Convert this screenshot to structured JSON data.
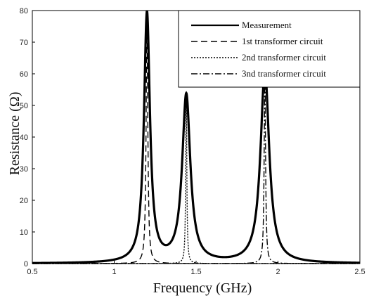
{
  "chart_data": {
    "type": "line",
    "title": "",
    "xlabel": "Frequency (GHz)",
    "ylabel": "Resistance (Ω)",
    "xlim": [
      0.5,
      2.5
    ],
    "ylim": [
      0,
      80
    ],
    "xticks": [
      "0.5",
      "1",
      "1.5",
      "2",
      "2.5"
    ],
    "yticks": [
      "0",
      "10",
      "20",
      "30",
      "40",
      "50",
      "60",
      "70",
      "80"
    ],
    "grid": false,
    "legend_position": "top-right",
    "series": [
      {
        "name": "Measurement",
        "style": "solid",
        "color": "#000000",
        "peaks": [
          {
            "x": 1.2,
            "y": 79
          },
          {
            "x": 1.44,
            "y": 53
          },
          {
            "x": 1.92,
            "y": 61
          }
        ],
        "valleys": [
          {
            "x": 1.3,
            "y": 4
          },
          {
            "x": 1.7,
            "y": 6
          }
        ]
      },
      {
        "name": "1st transformer circuit",
        "style": "dashed",
        "color": "#000000",
        "peaks": [
          {
            "x": 1.2,
            "y": 79
          }
        ]
      },
      {
        "name": "2nd transformer circuit",
        "style": "dotted",
        "color": "#000000",
        "peaks": [
          {
            "x": 1.44,
            "y": 53
          }
        ]
      },
      {
        "name": "3nd transformer circuit",
        "style": "dash-dot",
        "color": "#000000",
        "peaks": [
          {
            "x": 1.92,
            "y": 61
          }
        ]
      }
    ]
  }
}
